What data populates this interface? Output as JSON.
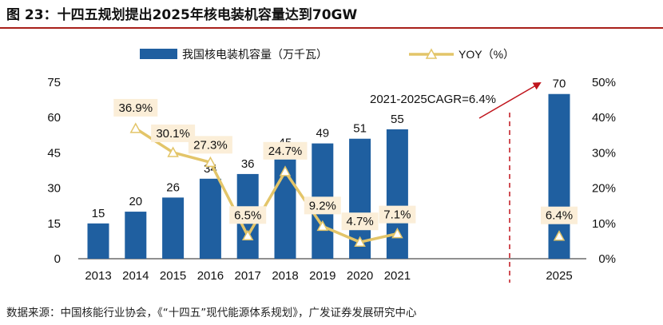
{
  "title": "图  23：十四五规划提出2025年核电装机容量达到70GW",
  "source": "数据来源：中国核能行业协会，《“十四五”现代能源体系规划》，广发证券发展研究中心",
  "chart_data": {
    "type": "bar",
    "categories": [
      "2013",
      "2014",
      "2015",
      "2016",
      "2017",
      "2018",
      "2019",
      "2020",
      "2021",
      "2025"
    ],
    "series": [
      {
        "name": "我国核电装机容量（万千瓦）",
        "type": "bar",
        "axis": "left",
        "color": "#1f5fa0",
        "values": [
          15,
          20,
          26,
          34,
          36,
          45,
          49,
          51,
          55,
          70
        ],
        "labels": [
          "15",
          "20",
          "26",
          "34",
          "36",
          "45",
          "49",
          "51",
          "55",
          "70"
        ]
      },
      {
        "name": "YOY（%）",
        "type": "line",
        "axis": "right",
        "color": "#e3c569",
        "marker": "triangle",
        "values": [
          null,
          36.9,
          30.1,
          27.3,
          6.5,
          24.7,
          9.2,
          4.7,
          7.1,
          6.4
        ],
        "labels": [
          null,
          "36.9%",
          "30.1%",
          "27.3%",
          "6.5%",
          "24.7%",
          "9.2%",
          "4.7%",
          "7.1%",
          "6.4%"
        ],
        "line_segment_categories": [
          "2014",
          "2015",
          "2016",
          "2017",
          "2018",
          "2019",
          "2020",
          "2021"
        ]
      }
    ],
    "y_left": {
      "ylim": [
        0,
        75
      ],
      "ticks": [
        "0",
        "15",
        "30",
        "45",
        "60",
        "75"
      ]
    },
    "y_right": {
      "ylim": [
        0,
        50
      ],
      "ticks": [
        "0%",
        "10%",
        "20%",
        "30%",
        "40%",
        "50%"
      ]
    },
    "annotation": "2021-2025CAGR=6.4%",
    "legend_placement": "top-center",
    "grid": false,
    "accent_colors": {
      "arrow": "#c0141c",
      "divider": "#c0141c",
      "label_box": "#fbeed8"
    }
  }
}
